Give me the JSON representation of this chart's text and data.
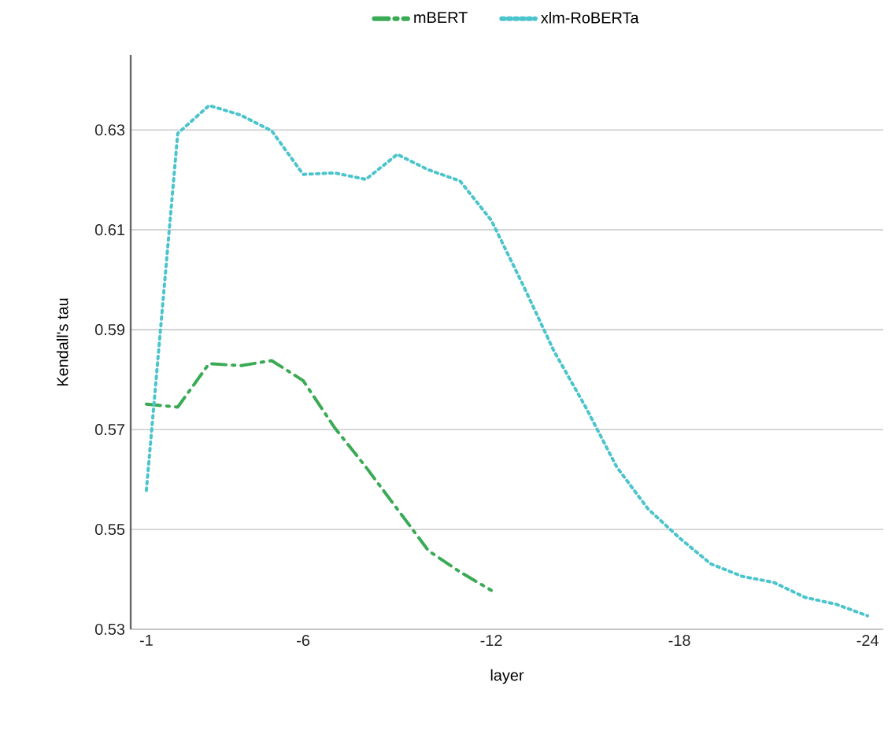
{
  "chart_data": {
    "type": "line",
    "xlabel": "layer",
    "ylabel": "Kendall's tau",
    "xlim": [
      -0.5,
      -24.5
    ],
    "xticks": [
      -1,
      -6,
      -12,
      -18,
      -24
    ],
    "ylim": [
      0.53,
      0.645
    ],
    "yticks": [
      0.53,
      0.55,
      0.57,
      0.59,
      0.61,
      0.63
    ],
    "grid": "y",
    "legend": "top",
    "series": [
      {
        "name": "mBERT",
        "color": "#3aaa55",
        "line_style": "dashdot",
        "x": [
          -1,
          -2,
          -3,
          -4,
          -5,
          -6,
          -7,
          -8,
          -9,
          -10,
          -11,
          -12
        ],
        "values": [
          0.5751,
          0.5745,
          0.5832,
          0.5828,
          0.5838,
          0.5798,
          0.5704,
          0.5625,
          0.5541,
          0.5457,
          0.5415,
          0.5378
        ]
      },
      {
        "name": "xlm-RoBERTa",
        "color": "#4cc4cc",
        "line_style": "dotted",
        "x": [
          -1,
          -2,
          -3,
          -4,
          -5,
          -6,
          -7,
          -8,
          -9,
          -10,
          -11,
          -12,
          -13,
          -14,
          -15,
          -16,
          -17,
          -18,
          -19,
          -20,
          -21,
          -22,
          -23,
          -24
        ],
        "values": [
          0.5578,
          0.6293,
          0.6349,
          0.633,
          0.6298,
          0.6211,
          0.6214,
          0.6201,
          0.6251,
          0.622,
          0.6198,
          0.6119,
          0.5991,
          0.5857,
          0.5746,
          0.5625,
          0.5541,
          0.5483,
          0.5431,
          0.5406,
          0.5394,
          0.5364,
          0.535,
          0.5327
        ]
      }
    ]
  }
}
